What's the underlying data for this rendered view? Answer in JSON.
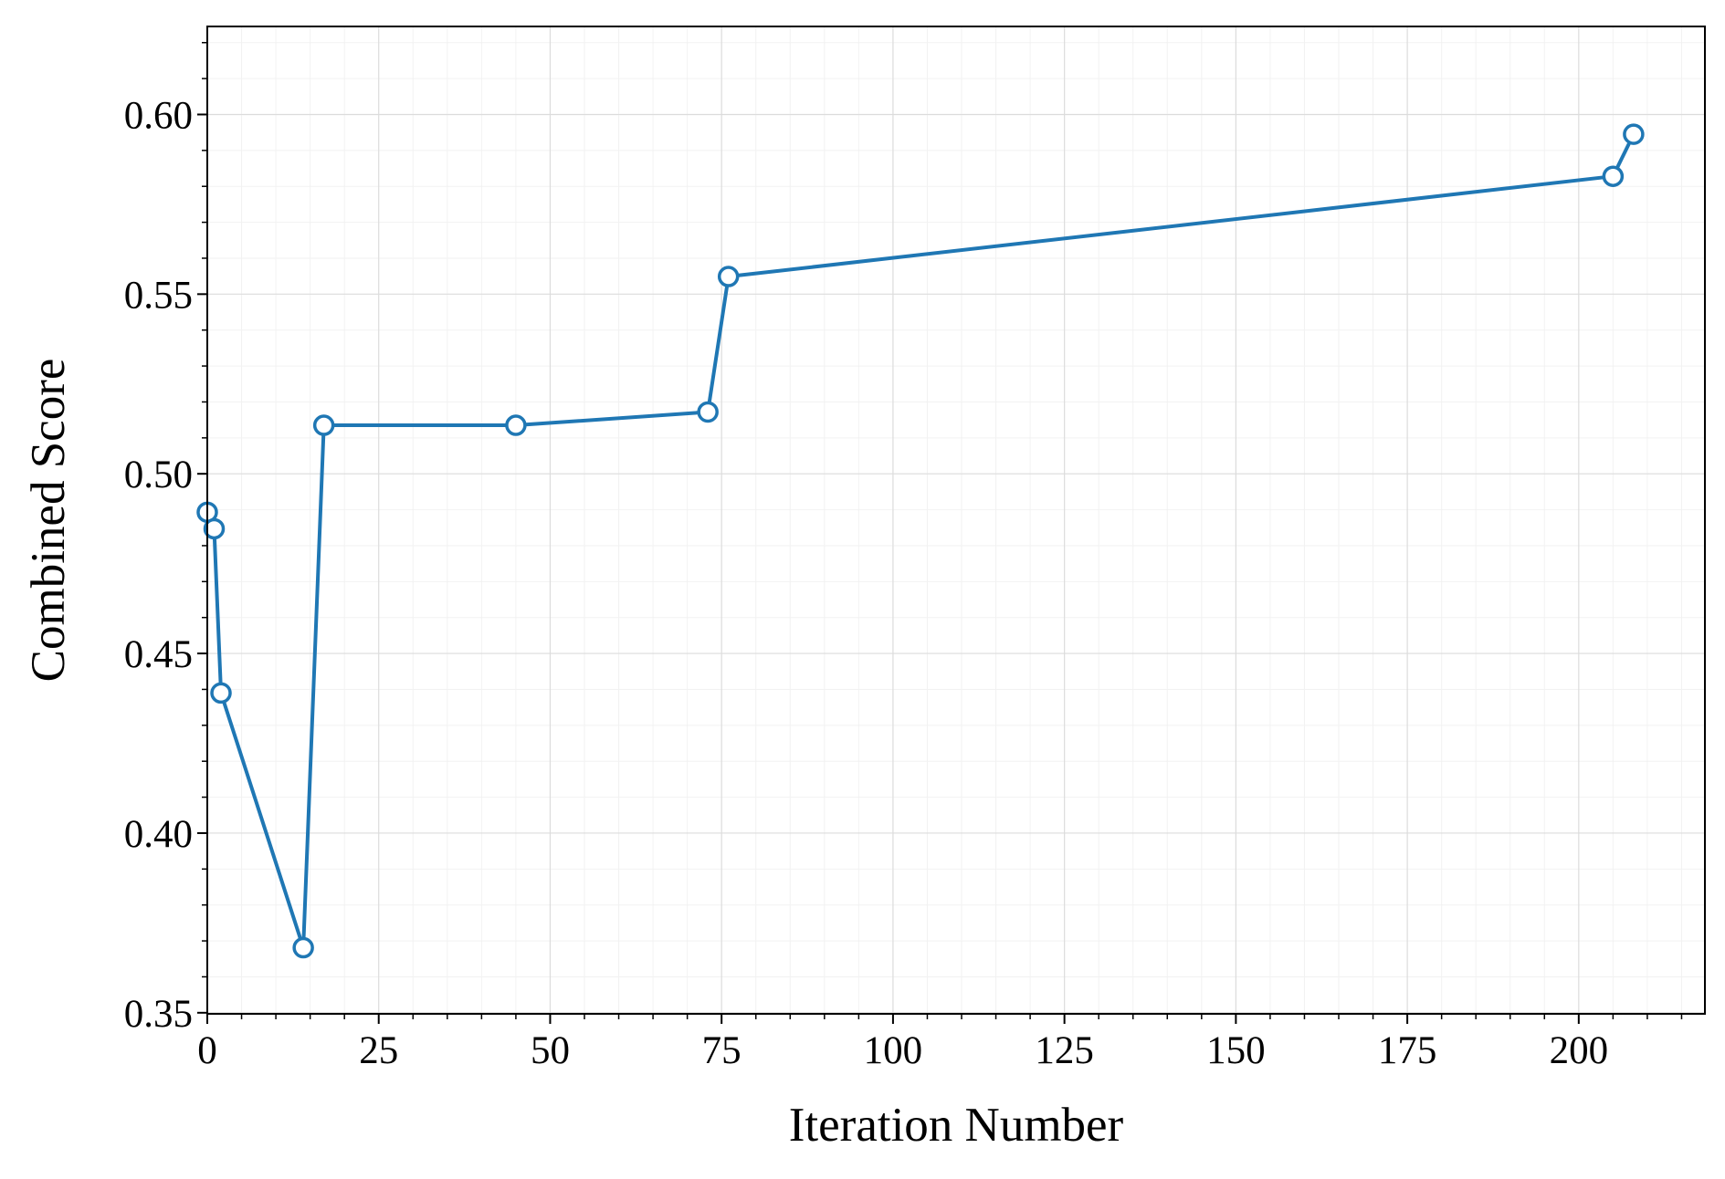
{
  "chart_data": {
    "type": "line",
    "x_label": "Iteration Number",
    "y_label": "Combined Score",
    "x": [
      0,
      1,
      2,
      14,
      17,
      45,
      73,
      76,
      205,
      208
    ],
    "series": [
      {
        "color": "#1f77b4",
        "values": [
          0.4893,
          0.4847,
          0.439,
          0.3681,
          0.5135,
          0.5135,
          0.5172,
          0.5549,
          0.5828,
          0.5945
        ]
      }
    ],
    "xlim": [
      0,
      218.4
    ],
    "ylim": [
      0.3497,
      0.6245
    ],
    "xticks": [
      0,
      25,
      50,
      75,
      100,
      125,
      150,
      175,
      200
    ],
    "yticks": [
      {
        "value": 0.35,
        "label": "0.35"
      },
      {
        "value": 0.4,
        "label": "0.40"
      },
      {
        "value": 0.45,
        "label": "0.45"
      },
      {
        "value": 0.5,
        "label": "0.50"
      },
      {
        "value": 0.55,
        "label": "0.55"
      },
      {
        "value": 0.6,
        "label": "0.60"
      }
    ],
    "minor_xticks": [
      5,
      10,
      15,
      20,
      30,
      35,
      40,
      45,
      55,
      60,
      65,
      70,
      80,
      85,
      90,
      95,
      105,
      110,
      115,
      120,
      130,
      135,
      140,
      145,
      155,
      160,
      165,
      170,
      180,
      185,
      190,
      195,
      205,
      210,
      215
    ],
    "minor_yticks": [
      0.36,
      0.37,
      0.38,
      0.39,
      0.41,
      0.42,
      0.43,
      0.44,
      0.46,
      0.47,
      0.48,
      0.49,
      0.51,
      0.52,
      0.53,
      0.54,
      0.56,
      0.57,
      0.58,
      0.59,
      0.61,
      0.62
    ],
    "grid": true
  }
}
